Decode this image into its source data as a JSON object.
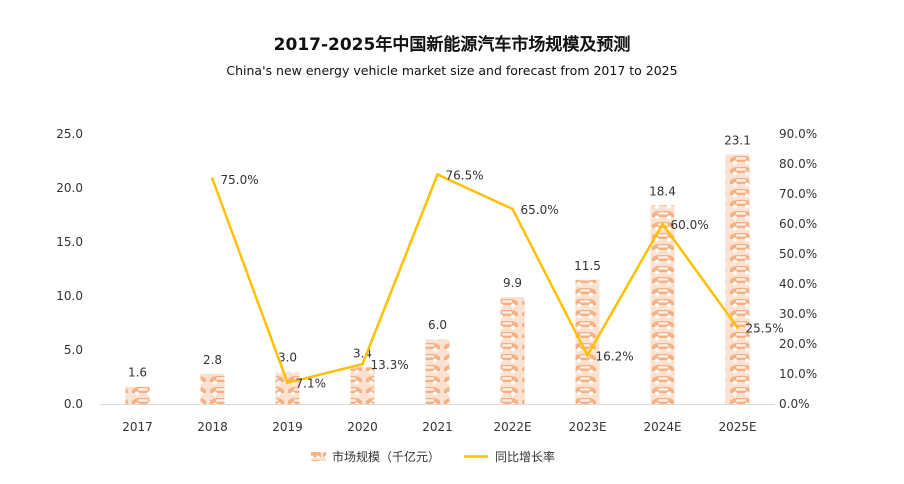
{
  "chart_data": {
    "type": "bar",
    "title": "2017-2025年中国新能源汽车市场规模及预测",
    "subtitle": "China's new energy vehicle market size and forecast from 2017 to 2025",
    "categories": [
      "2017",
      "2018",
      "2019",
      "2020",
      "2021",
      "2022E",
      "2023E",
      "2024E",
      "2025E"
    ],
    "series": [
      {
        "name": "市场规模（千亿元）",
        "type": "bar",
        "axis": "left",
        "values": [
          1.6,
          2.8,
          3.0,
          3.4,
          6.0,
          9.9,
          11.5,
          18.4,
          23.1
        ],
        "labels": [
          "1.6",
          "2.8",
          "3.0",
          "3.4",
          "6.0",
          "9.9",
          "11.5",
          "18.4",
          "23.1"
        ],
        "color": "#f4b183"
      },
      {
        "name": "同比增长率",
        "type": "line",
        "axis": "right",
        "values": [
          null,
          75.0,
          7.1,
          13.3,
          76.5,
          65.0,
          16.2,
          60.0,
          25.5
        ],
        "labels": [
          "",
          "75.0%",
          "7.1%",
          "13.3%",
          "76.5%",
          "65.0%",
          "16.2%",
          "60.0%",
          "25.5%"
        ],
        "color": "#ffc000"
      }
    ],
    "y_left": {
      "min": 0,
      "max": 25,
      "ticks": [
        "0.0",
        "5.0",
        "10.0",
        "15.0",
        "20.0",
        "25.0"
      ]
    },
    "y_right": {
      "min": 0,
      "max": 90,
      "ticks": [
        "0.0%",
        "10.0%",
        "20.0%",
        "30.0%",
        "40.0%",
        "50.0%",
        "60.0%",
        "70.0%",
        "80.0%",
        "90.0%"
      ]
    },
    "grid": false,
    "legend": "bottom"
  }
}
